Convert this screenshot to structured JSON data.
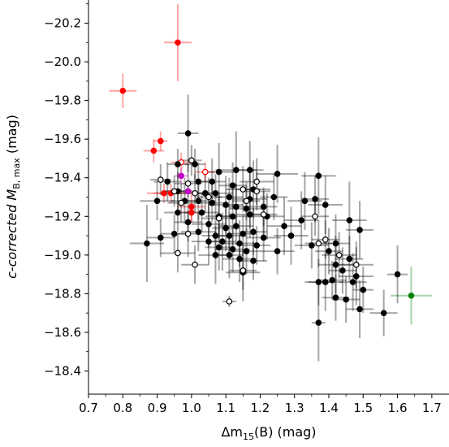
{
  "chart_data": {
    "type": "scatter",
    "xlabel_text": "Δm",
    "xlabel_sub": "15",
    "xlabel_rest": "(B) (mag)",
    "ylabel_pre": "c-corrected M",
    "ylabel_sub": "B, max",
    "ylabel_rest": " (mag)",
    "xlim": [
      0.7,
      1.75
    ],
    "ylim": [
      -20.32,
      -18.28
    ],
    "y_inverted": true,
    "xticks": [
      "0.7",
      "0.8",
      "0.9",
      "1.0",
      "1.1",
      "1.2",
      "1.3",
      "1.4",
      "1.5",
      "1.6",
      "1.7"
    ],
    "yticks": [
      "−20.2",
      "−20.0",
      "−19.8",
      "−19.6",
      "−19.4",
      "−19.2",
      "−19.0",
      "−18.8",
      "−18.6",
      "−18.4"
    ],
    "colors": {
      "red": "#ff0000",
      "green": "#008000",
      "magenta": "#c000c0",
      "black": "#000000"
    },
    "series": [
      {
        "color": "red",
        "filled": true,
        "points": [
          [
            0.96,
            -20.1,
            0.04,
            0.2
          ],
          [
            0.8,
            -19.85,
            0.04,
            0.09
          ],
          [
            0.91,
            -19.59,
            0.02,
            0.05
          ],
          [
            0.89,
            -19.54,
            0.03,
            0.06
          ],
          [
            0.92,
            -19.32,
            0.05,
            0.05
          ],
          [
            0.94,
            -19.32,
            0.05,
            0.05
          ],
          [
            1.0,
            -19.25,
            0.04,
            0.08
          ],
          [
            1.0,
            -19.22,
            0.03,
            0.05
          ]
        ]
      },
      {
        "color": "red",
        "filled": false,
        "points": [
          [
            0.97,
            -19.48,
            0.03,
            0.05
          ],
          [
            1.04,
            -19.43,
            0.03,
            0.05
          ]
        ]
      },
      {
        "color": "magenta",
        "filled": true,
        "points": [
          [
            0.97,
            -19.41,
            0.02,
            0.04
          ],
          [
            0.99,
            -19.33,
            0.02,
            0.03
          ]
        ]
      },
      {
        "color": "green",
        "filled": true,
        "points": [
          [
            1.64,
            -18.79,
            0.06,
            0.15
          ]
        ]
      },
      {
        "color": "black",
        "filled": true,
        "points": [
          [
            0.99,
            -19.63,
            0.03,
            0.2
          ],
          [
            0.96,
            -19.47,
            0.03,
            0.08
          ],
          [
            1.01,
            -19.47,
            0.03,
            0.08
          ],
          [
            1.08,
            -19.43,
            0.05,
            0.15
          ],
          [
            1.13,
            -19.44,
            0.06,
            0.2
          ],
          [
            1.17,
            -19.44,
            0.04,
            0.15
          ],
          [
            1.25,
            -19.42,
            0.06,
            0.15
          ],
          [
            1.37,
            -19.41,
            0.05,
            0.2
          ],
          [
            0.93,
            -19.38,
            0.04,
            0.1
          ],
          [
            1.02,
            -19.38,
            0.03,
            0.1
          ],
          [
            1.06,
            -19.38,
            0.04,
            0.12
          ],
          [
            1.12,
            -19.36,
            0.04,
            0.12
          ],
          [
            1.18,
            -19.34,
            0.05,
            0.15
          ],
          [
            0.96,
            -19.33,
            0.04,
            0.1
          ],
          [
            1.04,
            -19.32,
            0.04,
            0.1
          ],
          [
            1.07,
            -19.32,
            0.05,
            0.1
          ],
          [
            1.11,
            -19.3,
            0.04,
            0.1
          ],
          [
            1.17,
            -19.29,
            0.05,
            0.15
          ],
          [
            1.24,
            -19.3,
            0.04,
            0.12
          ],
          [
            1.33,
            -19.28,
            0.05,
            0.15
          ],
          [
            1.36,
            -19.29,
            0.04,
            0.12
          ],
          [
            0.9,
            -19.28,
            0.05,
            0.1
          ],
          [
            0.98,
            -19.28,
            0.04,
            0.12
          ],
          [
            1.02,
            -19.28,
            0.05,
            0.1
          ],
          [
            1.06,
            -19.27,
            0.04,
            0.1
          ],
          [
            1.1,
            -19.26,
            0.05,
            0.15
          ],
          [
            1.13,
            -19.25,
            0.04,
            0.12
          ],
          [
            1.16,
            -19.24,
            0.05,
            0.12
          ],
          [
            1.21,
            -19.25,
            0.04,
            0.1
          ],
          [
            1.39,
            -19.26,
            0.05,
            0.15
          ],
          [
            0.96,
            -19.22,
            0.04,
            0.1
          ],
          [
            1.03,
            -19.22,
            0.05,
            0.1
          ],
          [
            1.08,
            -19.2,
            0.04,
            0.12
          ],
          [
            1.12,
            -19.2,
            0.05,
            0.15
          ],
          [
            1.17,
            -19.21,
            0.04,
            0.12
          ],
          [
            1.22,
            -19.2,
            0.05,
            0.12
          ],
          [
            1.32,
            -19.18,
            0.05,
            0.15
          ],
          [
            1.46,
            -19.18,
            0.05,
            0.2
          ],
          [
            0.99,
            -19.17,
            0.04,
            0.1
          ],
          [
            1.05,
            -19.16,
            0.05,
            0.12
          ],
          [
            1.1,
            -19.14,
            0.04,
            0.12
          ],
          [
            1.13,
            -19.15,
            0.05,
            0.1
          ],
          [
            1.18,
            -19.12,
            0.04,
            0.12
          ],
          [
            1.27,
            -19.15,
            0.05,
            0.15
          ],
          [
            1.49,
            -19.13,
            0.04,
            0.15
          ],
          [
            0.95,
            -19.11,
            0.04,
            0.1
          ],
          [
            1.02,
            -19.12,
            0.05,
            0.1
          ],
          [
            1.07,
            -19.1,
            0.04,
            0.12
          ],
          [
            1.11,
            -19.1,
            0.05,
            0.12
          ],
          [
            1.15,
            -19.11,
            0.04,
            0.1
          ],
          [
            1.21,
            -19.09,
            0.05,
            0.12
          ],
          [
            1.29,
            -19.1,
            0.05,
            0.15
          ],
          [
            0.91,
            -19.09,
            0.04,
            0.1
          ],
          [
            1.05,
            -19.07,
            0.05,
            0.12
          ],
          [
            1.09,
            -19.07,
            0.04,
            0.15
          ],
          [
            1.14,
            -19.06,
            0.05,
            0.12
          ],
          [
            1.19,
            -19.05,
            0.04,
            0.1
          ],
          [
            1.35,
            -19.05,
            0.05,
            0.12
          ],
          [
            1.42,
            -19.06,
            0.04,
            0.15
          ],
          [
            0.87,
            -19.06,
            0.05,
            0.2
          ],
          [
            1.08,
            -19.04,
            0.04,
            0.12
          ],
          [
            1.12,
            -19.03,
            0.05,
            0.12
          ],
          [
            1.16,
            -19.02,
            0.04,
            0.12
          ],
          [
            1.25,
            -19.02,
            0.05,
            0.12
          ],
          [
            1.4,
            -19.02,
            0.04,
            0.12
          ],
          [
            1.07,
            -19.0,
            0.05,
            0.15
          ],
          [
            1.11,
            -19.0,
            0.04,
            0.12
          ],
          [
            1.14,
            -18.98,
            0.05,
            0.12
          ],
          [
            1.18,
            -18.97,
            0.04,
            0.1
          ],
          [
            1.46,
            -18.98,
            0.04,
            0.12
          ],
          [
            1.42,
            -18.95,
            0.05,
            0.15
          ],
          [
            1.44,
            -18.92,
            0.04,
            0.12
          ],
          [
            1.15,
            -18.91,
            0.05,
            0.15
          ],
          [
            1.6,
            -18.9,
            0.03,
            0.15
          ],
          [
            1.48,
            -18.89,
            0.05,
            0.15
          ],
          [
            1.37,
            -18.86,
            0.04,
            0.12
          ],
          [
            1.41,
            -18.87,
            0.04,
            0.1
          ],
          [
            1.39,
            -18.86,
            0.05,
            0.15
          ],
          [
            1.47,
            -18.86,
            0.04,
            0.15
          ],
          [
            1.5,
            -18.82,
            0.03,
            0.12
          ],
          [
            1.42,
            -18.78,
            0.04,
            0.12
          ],
          [
            1.45,
            -18.77,
            0.04,
            0.12
          ],
          [
            1.49,
            -18.72,
            0.04,
            0.15
          ],
          [
            1.56,
            -18.7,
            0.04,
            0.12
          ],
          [
            1.37,
            -18.65,
            0.02,
            0.2
          ]
        ]
      },
      {
        "color": "black",
        "filled": false,
        "points": [
          [
            0.91,
            -19.39,
            0.03,
            0.08
          ],
          [
            1.0,
            -19.49,
            0.03,
            0.08
          ],
          [
            0.99,
            -19.37,
            0.04,
            0.1
          ],
          [
            1.19,
            -19.38,
            0.05,
            0.12
          ],
          [
            0.95,
            -19.33,
            0.03,
            0.08
          ],
          [
            1.01,
            -19.32,
            0.04,
            0.1
          ],
          [
            1.05,
            -19.3,
            0.04,
            0.1
          ],
          [
            1.15,
            -19.34,
            0.05,
            0.12
          ],
          [
            1.16,
            -19.28,
            0.04,
            0.1
          ],
          [
            1.19,
            -19.33,
            0.04,
            0.1
          ],
          [
            0.97,
            -19.27,
            0.04,
            0.1
          ],
          [
            1.08,
            -19.19,
            0.05,
            0.1
          ],
          [
            1.21,
            -19.21,
            0.04,
            0.12
          ],
          [
            1.36,
            -19.2,
            0.04,
            0.1
          ],
          [
            0.99,
            -19.11,
            0.04,
            0.12
          ],
          [
            1.37,
            -19.06,
            0.04,
            0.12
          ],
          [
            1.39,
            -19.08,
            0.04,
            0.1
          ],
          [
            1.43,
            -19.0,
            0.05,
            0.12
          ],
          [
            0.96,
            -19.01,
            0.05,
            0.1
          ],
          [
            1.01,
            -18.95,
            0.04,
            0.1
          ],
          [
            1.48,
            -18.95,
            0.05,
            0.12
          ],
          [
            1.15,
            -18.92,
            0.04,
            0.1
          ],
          [
            1.11,
            -18.76,
            0.02,
            0.03
          ]
        ]
      }
    ]
  }
}
